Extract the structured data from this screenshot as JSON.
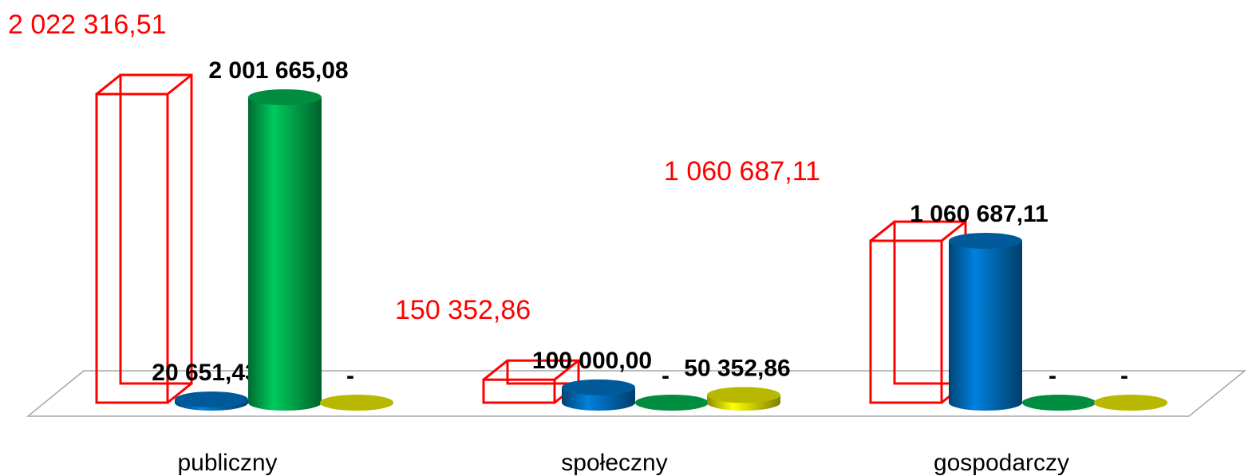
{
  "chart_data": {
    "type": "bar3d",
    "categories": [
      "publiczny",
      "społeczny",
      "gospodarczy"
    ],
    "series": [
      {
        "color": "#ff0000",
        "style": "wireframe",
        "values": [
          2022316.51,
          150352.86,
          1060687.11
        ],
        "value_labels": [
          "2 022 316,51",
          "150 352,86",
          "1 060 687,11"
        ]
      },
      {
        "color": "#0070c0",
        "style": "cylinder",
        "values": [
          20651.43,
          100000.0,
          1060687.11
        ],
        "value_labels": [
          "20 651,43",
          "100 000,00",
          "1 060 687,11"
        ]
      },
      {
        "color": "#00b050",
        "style": "cylinder",
        "values": [
          2001665.08,
          0,
          0
        ],
        "value_labels": [
          "2 001 665,08",
          "-",
          "-"
        ]
      },
      {
        "color": "#e6e600",
        "style": "cylinder",
        "values": [
          0,
          50352.86,
          0
        ],
        "value_labels": [
          "-",
          "50 352,86",
          "-"
        ]
      }
    ]
  }
}
